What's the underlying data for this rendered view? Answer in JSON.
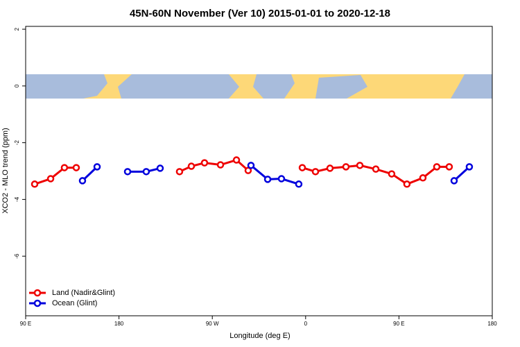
{
  "chart_data": {
    "type": "line",
    "title": "45N-60N November (Ver 10)   2015-01-01 to 2020-12-18",
    "xlabel": "Longitude (deg E)",
    "ylabel": "XCO2 - MLO trend (ppm)",
    "xlim": [
      90,
      540
    ],
    "ylim": [
      -8.1,
      2.1
    ],
    "xticks": [
      {
        "value": 90,
        "label": "90 E"
      },
      180,
      {
        "value": 270,
        "label": "90 W"
      },
      {
        "value": 360,
        "label": "0"
      },
      {
        "value": 450,
        "label": "90 E"
      },
      {
        "value": 540,
        "label": "180"
      }
    ],
    "yticks": [
      2,
      0,
      -2,
      -4,
      -6
    ],
    "legend": "bottom-left",
    "series": [
      {
        "name": "Land (Nadir&Glint)",
        "color": "#ee0000",
        "x": [
          98.7,
          114.1,
          127.4,
          138.8,
          null,
          238.4,
          249.8,
          262.5,
          277.9,
          293.3,
          304.6,
          null,
          356.8,
          369.5,
          383.5,
          398.9,
          412.3,
          427.7,
          443.0,
          457.7,
          473.1,
          486.5,
          498.5
        ],
        "values": [
          -3.46,
          -3.27,
          -2.88,
          -2.88,
          null,
          -3.02,
          -2.83,
          -2.71,
          -2.78,
          -2.61,
          -2.98,
          null,
          -2.88,
          -3.02,
          -2.9,
          -2.85,
          -2.8,
          -2.93,
          -3.1,
          -3.46,
          -3.24,
          -2.85,
          -2.85
        ]
      },
      {
        "name": "Ocean (Glint)",
        "color": "#0000dd",
        "x": [
          144.8,
          158.9,
          null,
          188.3,
          206.3,
          219.7,
          null,
          307.3,
          323.4,
          336.7,
          353.4,
          null,
          503.2,
          517.9
        ],
        "values": [
          -3.34,
          -2.85,
          null,
          -3.02,
          -3.02,
          -2.9,
          null,
          -2.8,
          -3.29,
          -3.27,
          -3.46,
          null,
          -3.34,
          -2.85
        ]
      }
    ]
  }
}
